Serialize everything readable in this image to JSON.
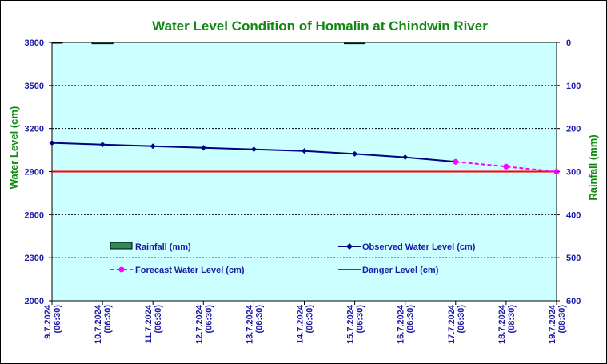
{
  "chart_data": {
    "type": "line",
    "title": "Water Level Condition of Homalin at Chindwin River",
    "ylabel": "Water Level (cm)",
    "y2label": "Rainfall (mm)",
    "ylim": [
      2000,
      3800
    ],
    "y2lim": [
      600,
      0
    ],
    "yticks": [
      "3800",
      "3500",
      "3200",
      "2900",
      "2600",
      "2300",
      "2000"
    ],
    "y2ticks": [
      "0",
      "100",
      "200",
      "300",
      "400",
      "500",
      "600"
    ],
    "categories": [
      [
        "9.7.2024",
        "(06:30)"
      ],
      [
        "10.7.2024",
        "(06:30)"
      ],
      [
        "11.7.2024",
        "(06:30)"
      ],
      [
        "12.7.2024",
        "(06:30)"
      ],
      [
        "13.7.2024",
        "(06:30)"
      ],
      [
        "14.7.2024",
        "(06:30)"
      ],
      [
        "15.7.2024",
        "(06:30)"
      ],
      [
        "16.7.2024",
        "(06:30)"
      ],
      [
        "17.7.2024",
        "(06:30)"
      ],
      [
        "18.7.2024",
        "(08:30)"
      ],
      [
        "19.7.2024",
        "(08:30)"
      ]
    ],
    "grid": true,
    "legend_position": "inside-bottom",
    "series": [
      {
        "name": "Rainfall (mm)",
        "kind": "bar",
        "axis": "right",
        "color": "#2e8b57",
        "values": [
          1,
          3,
          null,
          null,
          null,
          null,
          3,
          null,
          null,
          null,
          null
        ]
      },
      {
        "name": "Observed Water Level (cm)",
        "kind": "line",
        "axis": "left",
        "color": "#000080",
        "values": [
          3100,
          3088,
          3077,
          3066,
          3055,
          3044,
          3023,
          3000,
          2968,
          null,
          null
        ]
      },
      {
        "name": "Forecast Water Level (cm)",
        "kind": "dashed-line",
        "axis": "left",
        "color": "#ff00ff",
        "values": [
          null,
          null,
          null,
          null,
          null,
          null,
          null,
          null,
          2968,
          2935,
          2899
        ]
      },
      {
        "name": "Danger Level (cm)",
        "kind": "hline",
        "axis": "left",
        "color": "#ff0000",
        "value": 2900
      }
    ]
  },
  "legend": {
    "rainfall": "Rainfall (mm)",
    "observed": "Observed Water Level (cm)",
    "forecast": "Forecast Water Level (cm)",
    "danger": "Danger Level (cm)"
  },
  "colors": {
    "plot_background": "#ccffff",
    "tick_text": "#1a1aa6",
    "title_text": "#118811"
  }
}
